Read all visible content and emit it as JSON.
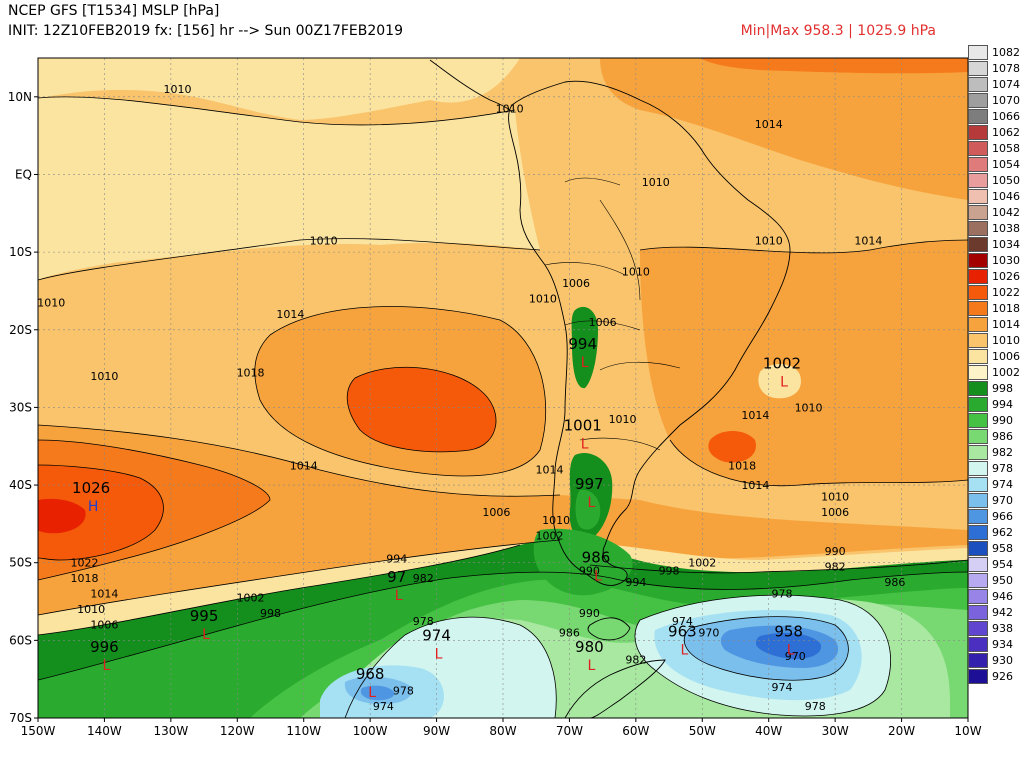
{
  "header": {
    "line1": "NCEP GFS [T1534] MSLP [hPa]",
    "line2": "INIT: 12Z10FEB2019 fx: [156] hr --> Sun 00Z17FEB2019",
    "minmax": "Min|Max 958.3 | 1025.9 hPa"
  },
  "axes": {
    "lat_labels": [
      "10N",
      "EQ",
      "10S",
      "20S",
      "30S",
      "40S",
      "50S",
      "60S",
      "70S"
    ],
    "lon_labels": [
      "150W",
      "140W",
      "130W",
      "120W",
      "110W",
      "100W",
      "90W",
      "80W",
      "70W",
      "60W",
      "50W",
      "40W",
      "30W",
      "20W",
      "10W"
    ]
  },
  "colorbar": [
    {
      "label": "1082",
      "color": "#e8e8e8"
    },
    {
      "label": "1078",
      "color": "#d6d6d6"
    },
    {
      "label": "1074",
      "color": "#bdbdbd"
    },
    {
      "label": "1070",
      "color": "#9e9e9e"
    },
    {
      "label": "1066",
      "color": "#7d7d7d"
    },
    {
      "label": "1062",
      "color": "#b73a3a"
    },
    {
      "label": "1058",
      "color": "#d05b5b"
    },
    {
      "label": "1054",
      "color": "#e07b7b"
    },
    {
      "label": "1050",
      "color": "#ea9d9d"
    },
    {
      "label": "1046",
      "color": "#efbfb0"
    },
    {
      "label": "1042",
      "color": "#c9a38f"
    },
    {
      "label": "1038",
      "color": "#9c7060"
    },
    {
      "label": "1034",
      "color": "#6b3a2c"
    },
    {
      "label": "1030",
      "color": "#a30000"
    },
    {
      "label": "1026",
      "color": "#e82200"
    },
    {
      "label": "1022",
      "color": "#f45a0a"
    },
    {
      "label": "1018",
      "color": "#f57a1b"
    },
    {
      "label": "1014",
      "color": "#f7a33d"
    },
    {
      "label": "1010",
      "color": "#f9c46b"
    },
    {
      "label": "1006",
      "color": "#fbe3a0"
    },
    {
      "label": "1002",
      "color": "#fdf3c8"
    },
    {
      "label": "998",
      "color": "#148e1c"
    },
    {
      "label": "994",
      "color": "#2aab2f"
    },
    {
      "label": "990",
      "color": "#45c244"
    },
    {
      "label": "986",
      "color": "#78d872"
    },
    {
      "label": "982",
      "color": "#a8e8a0"
    },
    {
      "label": "978",
      "color": "#d2f5ef"
    },
    {
      "label": "974",
      "color": "#a6e1f3"
    },
    {
      "label": "970",
      "color": "#7bbfec"
    },
    {
      "label": "966",
      "color": "#4e95e2"
    },
    {
      "label": "962",
      "color": "#2d6fd4"
    },
    {
      "label": "958",
      "color": "#1b4fc0"
    },
    {
      "label": "954",
      "color": "#d6cff5"
    },
    {
      "label": "950",
      "color": "#b7aaf0"
    },
    {
      "label": "946",
      "color": "#9784e6"
    },
    {
      "label": "942",
      "color": "#7a63dc"
    },
    {
      "label": "938",
      "color": "#5f45cf"
    },
    {
      "label": "934",
      "color": "#4a2fc0"
    },
    {
      "label": "930",
      "color": "#3320ad"
    },
    {
      "label": "926",
      "color": "#1d0f96"
    }
  ],
  "contour_labels": [
    {
      "text": "1010",
      "lon": -129,
      "lat": 10.5
    },
    {
      "text": "1010",
      "lon": -79,
      "lat": 8
    },
    {
      "text": "1014",
      "lon": -40,
      "lat": 6
    },
    {
      "text": "1010",
      "lon": -57,
      "lat": -1.5
    },
    {
      "text": "1010",
      "lon": -107,
      "lat": -9
    },
    {
      "text": "1010",
      "lon": -40,
      "lat": -9
    },
    {
      "text": "1014",
      "lon": -25,
      "lat": -9
    },
    {
      "text": "1010",
      "lon": -60,
      "lat": -13
    },
    {
      "text": "1010",
      "lon": -148,
      "lat": -17
    },
    {
      "text": "1010",
      "lon": -74,
      "lat": -16.5
    },
    {
      "text": "1006",
      "lon": -69,
      "lat": -14.5
    },
    {
      "text": "1006",
      "lon": -65,
      "lat": -19.5
    },
    {
      "text": "1014",
      "lon": -112,
      "lat": -18.5
    },
    {
      "text": "1010",
      "lon": -140,
      "lat": -26.5
    },
    {
      "text": "1018",
      "lon": -118,
      "lat": -26
    },
    {
      "text": "1010",
      "lon": -62,
      "lat": -32
    },
    {
      "text": "1014",
      "lon": -42,
      "lat": -31.5
    },
    {
      "text": "1010",
      "lon": -34,
      "lat": -30.5
    },
    {
      "text": "1014",
      "lon": -110,
      "lat": -38
    },
    {
      "text": "1014",
      "lon": -73,
      "lat": -38.5
    },
    {
      "text": "1018",
      "lon": -44,
      "lat": -38
    },
    {
      "text": "1014",
      "lon": -42,
      "lat": -40.5
    },
    {
      "text": "1010",
      "lon": -30,
      "lat": -42
    },
    {
      "text": "1006",
      "lon": -81,
      "lat": -44
    },
    {
      "text": "1006",
      "lon": -30,
      "lat": -44
    },
    {
      "text": "1010",
      "lon": -72,
      "lat": -45
    },
    {
      "text": "1002",
      "lon": -73,
      "lat": -47
    },
    {
      "text": "994",
      "lon": -96,
      "lat": -50
    },
    {
      "text": "990",
      "lon": -30,
      "lat": -49
    },
    {
      "text": "982",
      "lon": -30,
      "lat": -51
    },
    {
      "text": "1022",
      "lon": -143,
      "lat": -50.5
    },
    {
      "text": "1018",
      "lon": -143,
      "lat": -52.5
    },
    {
      "text": "1014",
      "lon": -140,
      "lat": -54.5
    },
    {
      "text": "1010",
      "lon": -142,
      "lat": -56.5
    },
    {
      "text": "1006",
      "lon": -140,
      "lat": -58.5
    },
    {
      "text": "1002",
      "lon": -118,
      "lat": -55
    },
    {
      "text": "998",
      "lon": -115,
      "lat": -57
    },
    {
      "text": "982",
      "lon": -92,
      "lat": -52.5
    },
    {
      "text": "990",
      "lon": -67,
      "lat": -51.5
    },
    {
      "text": "998",
      "lon": -55,
      "lat": -51.5
    },
    {
      "text": "1002",
      "lon": -50,
      "lat": -50.5
    },
    {
      "text": "994",
      "lon": -60,
      "lat": -53
    },
    {
      "text": "990",
      "lon": -67,
      "lat": -57
    },
    {
      "text": "986",
      "lon": -70,
      "lat": -59.5
    },
    {
      "text": "978",
      "lon": -92,
      "lat": -58
    },
    {
      "text": "978",
      "lon": -38,
      "lat": -54.5
    },
    {
      "text": "986",
      "lon": -21,
      "lat": -53
    },
    {
      "text": "974",
      "lon": -53,
      "lat": -58
    },
    {
      "text": "970",
      "lon": -49,
      "lat": -59.5
    },
    {
      "text": "982",
      "lon": -60,
      "lat": -63
    },
    {
      "text": "970",
      "lon": -36,
      "lat": -62.5
    },
    {
      "text": "974",
      "lon": -38,
      "lat": -66.5
    },
    {
      "text": "978",
      "lon": -33,
      "lat": -69
    },
    {
      "text": "978",
      "lon": -95,
      "lat": -67
    },
    {
      "text": "974",
      "lon": -98,
      "lat": -69
    }
  ],
  "pressure_centers": [
    {
      "value": "1026",
      "type": "H",
      "lon": -142,
      "lat": -41
    },
    {
      "value": "994",
      "type": "L",
      "lon": -68,
      "lat": -22.5
    },
    {
      "value": "1002",
      "type": "L",
      "lon": -38,
      "lat": -25
    },
    {
      "value": "1001",
      "type": "L",
      "lon": -68,
      "lat": -33
    },
    {
      "value": "997",
      "type": "L",
      "lon": -67,
      "lat": -40.5
    },
    {
      "value": "986",
      "type": "L",
      "lon": -66,
      "lat": -50
    },
    {
      "value": "995",
      "type": "L",
      "lon": -125,
      "lat": -57.5
    },
    {
      "value": "996",
      "type": "L",
      "lon": -140,
      "lat": -61.5
    },
    {
      "value": "97",
      "type": "L",
      "lon": -96,
      "lat": -52.5
    },
    {
      "value": "974",
      "type": "L",
      "lon": -90,
      "lat": -60
    },
    {
      "value": "968",
      "type": "L",
      "lon": -100,
      "lat": -65
    },
    {
      "value": "980",
      "type": "L",
      "lon": -67,
      "lat": -61.5
    },
    {
      "value": "963",
      "type": "L",
      "lon": -53,
      "lat": -59.5
    },
    {
      "value": "958",
      "type": "L",
      "lon": -37,
      "lat": -59.5
    }
  ]
}
